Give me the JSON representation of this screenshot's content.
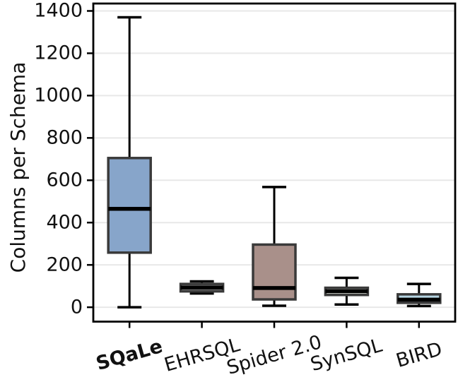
{
  "chart_data": {
    "type": "boxplot",
    "title": "",
    "xlabel": "",
    "ylabel": "Columns per Schema",
    "ylim": [
      -68,
      1435
    ],
    "yticks": [
      0,
      200,
      400,
      600,
      800,
      1000,
      1200,
      1400
    ],
    "grid": "horizontal-light",
    "legend": "none",
    "categories": [
      "SQaLe",
      "EHRSQL",
      "Spider 2.0",
      "SynSQL",
      "BIRD"
    ],
    "highlighted_category": "SQaLe",
    "series": [
      {
        "name": "SQaLe",
        "bold": true,
        "fill": "#87a5ca",
        "whisker_low": 0,
        "q1": 258,
        "median": 465,
        "q3": 705,
        "whisker_high": 1370
      },
      {
        "name": "EHRSQL",
        "bold": false,
        "fill": "#8a8a8a",
        "whisker_low": 65,
        "q1": 75,
        "median": 93,
        "q3": 110,
        "whisker_high": 122
      },
      {
        "name": "Spider 2.0",
        "bold": false,
        "fill": "#a9908a",
        "whisker_low": 7,
        "q1": 37,
        "median": 91,
        "q3": 296,
        "whisker_high": 568
      },
      {
        "name": "SynSQL",
        "bold": false,
        "fill": "#d4d8d1",
        "whisker_low": 13,
        "q1": 58,
        "median": 76,
        "q3": 92,
        "whisker_high": 139
      },
      {
        "name": "BIRD",
        "bold": false,
        "fill": "#b7d6e4",
        "whisker_low": 6,
        "q1": 21,
        "median": 36,
        "q3": 61,
        "whisker_high": 110
      }
    ],
    "colors": {
      "box_edge": "#3a3a3a",
      "median": "#000000",
      "whisker": "#000000",
      "spine": "#000000",
      "grid": "#e8e8e8",
      "text": "#111111",
      "background": "#ffffff"
    }
  }
}
